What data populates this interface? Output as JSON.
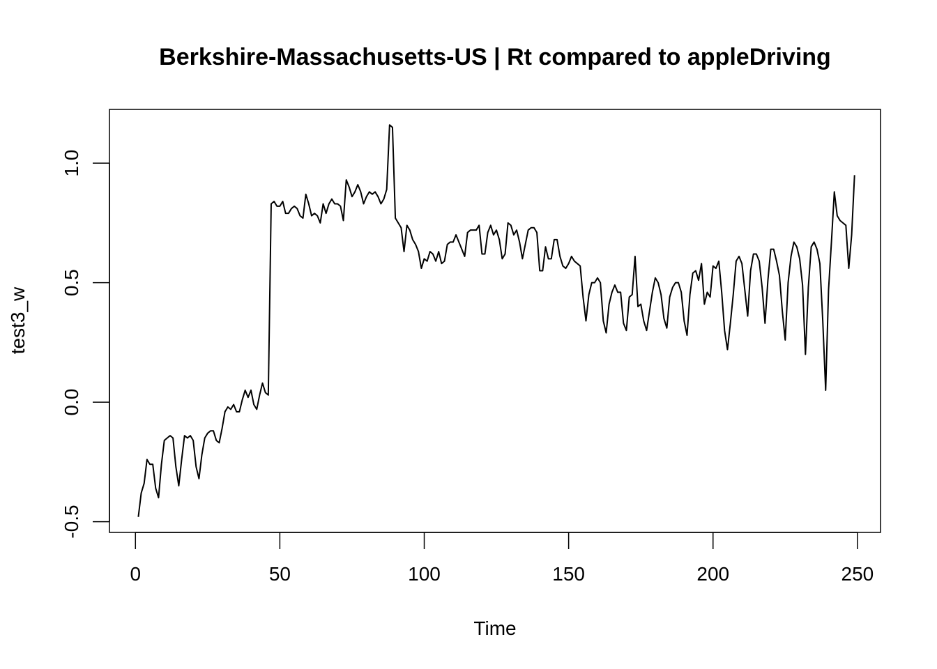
{
  "chart_data": {
    "type": "line",
    "title": "Berkshire-Massachusetts-US | Rt compared to appleDriving",
    "xlabel": "Time",
    "ylabel": "test3_w",
    "xlim": [
      -9,
      258
    ],
    "ylim": [
      -0.545,
      1.225
    ],
    "x_ticks": [
      0,
      50,
      100,
      150,
      200,
      250
    ],
    "x_tick_labels": [
      "0",
      "50",
      "100",
      "150",
      "200",
      "250"
    ],
    "y_ticks": [
      -0.5,
      0.0,
      0.5,
      1.0
    ],
    "y_tick_labels": [
      "-0.5",
      "0.0",
      "0.5",
      "1.0"
    ],
    "grid": false,
    "line_color": "#000000",
    "series": [
      {
        "x_start": 1,
        "x_step": 1,
        "values": [
          -0.48,
          -0.38,
          -0.34,
          -0.24,
          -0.26,
          -0.26,
          -0.36,
          -0.4,
          -0.26,
          -0.16,
          -0.15,
          -0.14,
          -0.15,
          -0.27,
          -0.35,
          -0.24,
          -0.14,
          -0.15,
          -0.14,
          -0.16,
          -0.27,
          -0.32,
          -0.22,
          -0.15,
          -0.13,
          -0.12,
          -0.12,
          -0.16,
          -0.17,
          -0.11,
          -0.04,
          -0.02,
          -0.03,
          -0.01,
          -0.04,
          -0.04,
          0.01,
          0.05,
          0.02,
          0.05,
          -0.01,
          -0.03,
          0.03,
          0.08,
          0.04,
          0.03,
          0.83,
          0.84,
          0.82,
          0.82,
          0.84,
          0.79,
          0.79,
          0.81,
          0.82,
          0.81,
          0.78,
          0.77,
          0.87,
          0.83,
          0.78,
          0.79,
          0.78,
          0.75,
          0.83,
          0.79,
          0.83,
          0.85,
          0.83,
          0.83,
          0.82,
          0.76,
          0.93,
          0.9,
          0.86,
          0.88,
          0.91,
          0.88,
          0.83,
          0.86,
          0.88,
          0.87,
          0.88,
          0.86,
          0.83,
          0.85,
          0.89,
          1.16,
          1.15,
          0.77,
          0.75,
          0.73,
          0.63,
          0.74,
          0.72,
          0.68,
          0.66,
          0.63,
          0.56,
          0.6,
          0.59,
          0.63,
          0.62,
          0.59,
          0.63,
          0.58,
          0.59,
          0.66,
          0.67,
          0.67,
          0.7,
          0.67,
          0.64,
          0.61,
          0.71,
          0.72,
          0.72,
          0.72,
          0.74,
          0.62,
          0.62,
          0.71,
          0.74,
          0.7,
          0.72,
          0.68,
          0.6,
          0.62,
          0.75,
          0.74,
          0.7,
          0.72,
          0.67,
          0.6,
          0.66,
          0.72,
          0.73,
          0.73,
          0.71,
          0.55,
          0.55,
          0.65,
          0.6,
          0.6,
          0.68,
          0.68,
          0.61,
          0.57,
          0.56,
          0.58,
          0.61,
          0.59,
          0.58,
          0.57,
          0.44,
          0.34,
          0.45,
          0.5,
          0.5,
          0.52,
          0.5,
          0.34,
          0.29,
          0.41,
          0.46,
          0.49,
          0.46,
          0.46,
          0.33,
          0.3,
          0.44,
          0.45,
          0.61,
          0.4,
          0.41,
          0.34,
          0.3,
          0.38,
          0.46,
          0.52,
          0.5,
          0.45,
          0.35,
          0.31,
          0.44,
          0.48,
          0.5,
          0.5,
          0.46,
          0.34,
          0.28,
          0.45,
          0.54,
          0.55,
          0.51,
          0.58,
          0.41,
          0.46,
          0.44,
          0.57,
          0.56,
          0.59,
          0.46,
          0.3,
          0.22,
          0.33,
          0.45,
          0.59,
          0.61,
          0.58,
          0.47,
          0.36,
          0.55,
          0.62,
          0.62,
          0.59,
          0.48,
          0.33,
          0.51,
          0.64,
          0.64,
          0.59,
          0.53,
          0.38,
          0.26,
          0.5,
          0.61,
          0.67,
          0.65,
          0.6,
          0.49,
          0.2,
          0.48,
          0.65,
          0.67,
          0.64,
          0.58,
          0.34,
          0.05,
          0.47,
          0.67,
          0.88,
          0.78,
          0.76,
          0.75,
          0.74,
          0.56,
          0.7,
          0.95
        ]
      }
    ]
  }
}
